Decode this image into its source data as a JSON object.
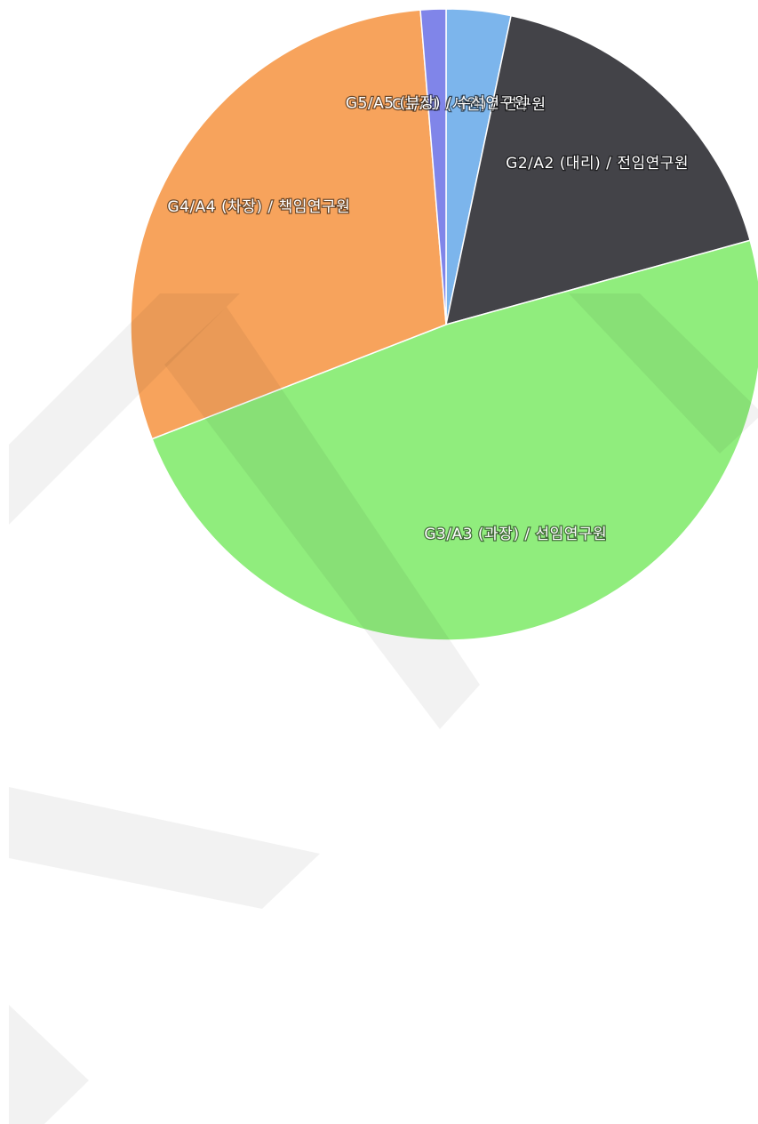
{
  "chart_data": {
    "type": "pie",
    "categories": [
      "G1/A1 (사원) / 연구원",
      "G2/A2 (대리) / 전임연구원",
      "G3/A3 (과장) / 선임연구원",
      "G4/A4 (차장) / 책임연구원",
      "G5/A5 (부장) / 수석연구원"
    ],
    "values": [
      3.3,
      17.4,
      48.4,
      29.6,
      1.3
    ],
    "colors": [
      "#7cb5ec",
      "#434348",
      "#90ed7d",
      "#f7a35c",
      "#8085e9"
    ]
  }
}
